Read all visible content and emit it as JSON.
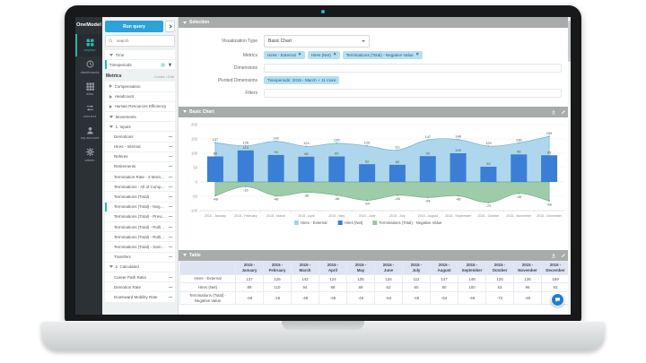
{
  "rail": {
    "logo": "OneModel",
    "items": [
      {
        "label": "explore",
        "icon": "grid-2x2",
        "active": true
      },
      {
        "label": "dashboards",
        "icon": "clock",
        "active": false
      },
      {
        "label": "data",
        "icon": "grid-3x3",
        "active": false
      },
      {
        "label": "connect",
        "icon": "arrows-swap",
        "active": false
      },
      {
        "label": "my account",
        "icon": "person",
        "active": false
      },
      {
        "label": "admin",
        "icon": "gear",
        "active": false
      }
    ]
  },
  "query_panel": {
    "run_query_label": "Run query",
    "search_placeholder": "search",
    "time_group_label": "Time",
    "time_item_label": "Timeperiods",
    "metrics_header": "Metrics",
    "create_edit_label": "Create / Edit",
    "tree": [
      {
        "label": "Compensation",
        "type": "group",
        "state": "collapsed"
      },
      {
        "label": "Headcount",
        "type": "group",
        "state": "collapsed"
      },
      {
        "label": "Human Resources Efficiency",
        "type": "group",
        "state": "collapsed"
      },
      {
        "label": "Movements",
        "type": "group",
        "state": "expanded"
      },
      {
        "label": "1. Inputs",
        "type": "subgroup",
        "state": "expanded"
      },
      {
        "label": "Demotions",
        "type": "leaf",
        "selected": false
      },
      {
        "label": "Hires - Internal",
        "type": "leaf",
        "selected": false
      },
      {
        "label": "Rehires",
        "type": "leaf",
        "selected": false
      },
      {
        "label": "Retirements",
        "type": "leaf",
        "selected": false
      },
      {
        "label": "Termination Rate - 3 Months Roll",
        "type": "leaf",
        "selected": false
      },
      {
        "label": "Terminations - All of Company",
        "type": "leaf",
        "selected": false
      },
      {
        "label": "Terminations (Total)",
        "type": "leaf",
        "selected": false
      },
      {
        "label": "Terminations (Total) - Negative V",
        "type": "leaf",
        "selected": true
      },
      {
        "label": "Terminations (Total) - Previous P",
        "type": "leaf",
        "selected": false
      },
      {
        "label": "Terminations (Total) - Rolling 12",
        "type": "leaf",
        "selected": false
      },
      {
        "label": "Terminations (Total) - Rolling 12",
        "type": "leaf",
        "selected": false
      },
      {
        "label": "Terminations (Total) - Same Peri",
        "type": "leaf",
        "selected": false
      },
      {
        "label": "Transfers",
        "type": "leaf",
        "selected": false
      },
      {
        "label": "2. Calculated",
        "type": "subgroup",
        "state": "expanded"
      },
      {
        "label": "Career Path Ratio",
        "type": "leaf",
        "selected": false
      },
      {
        "label": "Demotion Rate",
        "type": "leaf",
        "selected": false
      },
      {
        "label": "Downward Mobility Rate",
        "type": "leaf",
        "selected": false
      }
    ]
  },
  "selection": {
    "header": "Selection",
    "visualization_type_label": "Visualization Type",
    "visualization_type_value": "Basic Chart",
    "metrics_label": "Metrics",
    "metric_tags": [
      "Hires - External",
      "Hires (Net)",
      "Terminations (Total) - Negative Value"
    ],
    "dimensions_label": "Dimensions",
    "dimensions_value": "",
    "pivoted_label": "Pivoted Dimensions",
    "pivoted_tags": [
      "Timeperiods: 2015 - March + 11 more"
    ],
    "filters_label": "Filters",
    "filters_value": ""
  },
  "chart_section": {
    "header": "Basic Chart"
  },
  "table_section": {
    "header": "Table",
    "columns": [
      "2015 - January",
      "2015 - February",
      "2015 - March",
      "2015 - April",
      "2015 - May",
      "2015 - June",
      "2015 - July",
      "2015 - August",
      "2015 - September",
      "2015 - October",
      "2015 - November",
      "2015 - December"
    ],
    "rows": [
      {
        "label": "Hires - External",
        "values": [
          137,
          126,
          142,
          124,
          135,
          126,
          111,
          147,
          148,
          125,
          136,
          159
        ]
      },
      {
        "label": "Hires (Net)",
        "values": [
          89,
          110,
          94,
          88,
          89,
          62,
          60,
          90,
          100,
          53,
          96,
          93
        ]
      },
      {
        "label": "Terminations (Total) - Negative Value",
        "values": [
          -48,
          -16,
          -48,
          -36,
          -46,
          -64,
          -46,
          -54,
          -48,
          -72,
          -40,
          -66
        ]
      }
    ]
  },
  "chart_data": {
    "type": "combo",
    "title": "Basic Chart",
    "categories": [
      "2015 - January",
      "2015 - February",
      "2015 - March",
      "2015 - April",
      "2015 - May",
      "2015 - June",
      "2015 - July",
      "2015 - August",
      "2015 - September",
      "2015 - October",
      "2015 - November",
      "2015 - December"
    ],
    "series": [
      {
        "name": "Hires - External",
        "type": "area",
        "color": "#a3d2ea",
        "stroke": "#6fb1d8",
        "values": [
          137,
          126,
          142,
          124,
          135,
          126,
          111,
          147,
          148,
          125,
          136,
          159
        ]
      },
      {
        "name": "Hires (Net)",
        "type": "bar",
        "color": "#3a7fd5",
        "values": [
          89,
          110,
          94,
          88,
          89,
          62,
          60,
          90,
          100,
          53,
          96,
          93
        ]
      },
      {
        "name": "Terminations (Total) - Negative Value",
        "type": "area",
        "color": "#96c8a4",
        "stroke": "#72ad86",
        "values": [
          -48,
          -16,
          -48,
          -36,
          -46,
          -64,
          -46,
          -54,
          -48,
          -72,
          -40,
          -66
        ]
      }
    ],
    "xlabel": "",
    "ylabel": "",
    "ylim": [
      -100,
      200
    ],
    "yticks": [
      200,
      150,
      100,
      50,
      0,
      -50,
      -100
    ],
    "grid": true,
    "legend_position": "bottom"
  },
  "colors": {
    "accent_teal": "#2cb5ac",
    "run_button_blue": "#2ba2d8",
    "bar_blue": "#3a7fd5",
    "area_blue": "#a3d2ea",
    "area_green": "#96c8a4",
    "section_header_gray": "#a7abaa",
    "table_header_bg": "#dfe4f2",
    "pill_blue": "#b5e0f4",
    "chat_button_blue": "#1d7fd0"
  }
}
